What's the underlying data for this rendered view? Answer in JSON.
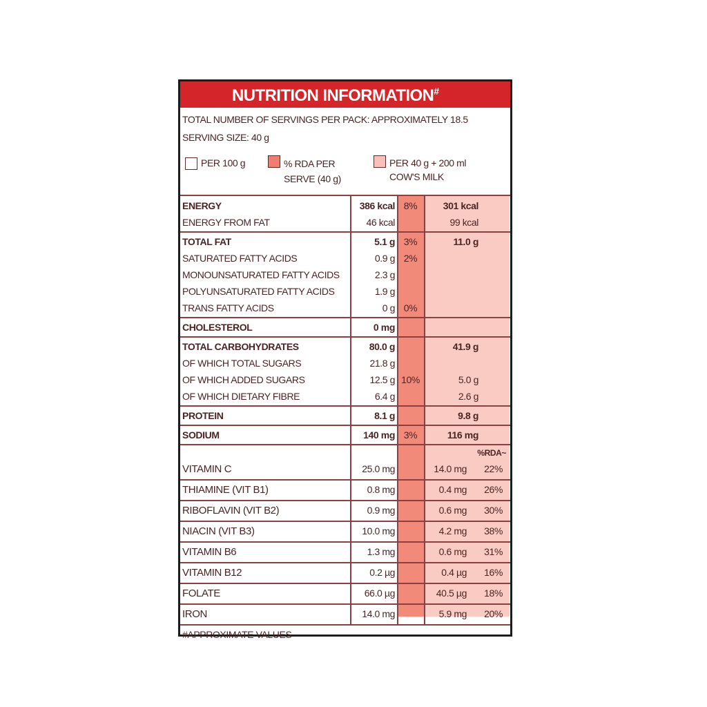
{
  "header": {
    "title": "NUTRITION INFORMATION",
    "title_mark": "#",
    "servings": "TOTAL NUMBER OF SERVINGS PER PACK: APPROXIMATELY 18.5",
    "serving_size": "SERVING SIZE: 40 g"
  },
  "legend": [
    "PER 100 g",
    "% RDA PER SERVE (40 g)",
    "PER 40 g + 200 ml COW'S MILK"
  ],
  "table": {
    "groups": [
      {
        "rows": [
          {
            "name": "ENERGY",
            "per_100g": "386 kcal",
            "rda": "8%",
            "milk": "301 kcal"
          },
          {
            "name": "ENERGY FROM FAT",
            "per_100g": "46 kcal",
            "milk": "99 kcal"
          }
        ]
      },
      {
        "rows": [
          {
            "name": "TOTAL FAT",
            "per_100g": "5.1 g",
            "rda": "3%",
            "milk": "11.0 g"
          },
          {
            "name": "SATURATED FATTY ACIDS",
            "per_100g": "0.9 g",
            "rda": "2%"
          },
          {
            "name": "MONOUNSATURATED FATTY ACIDS",
            "per_100g": "2.3 g"
          },
          {
            "name": "POLYUNSATURATED FATTY ACIDS",
            "per_100g": "1.9 g"
          },
          {
            "name": "TRANS FATTY ACIDS",
            "per_100g": "0 g",
            "rda": "0%"
          }
        ]
      },
      {
        "rows": [
          {
            "name": "CHOLESTEROL",
            "per_100g": "0 mg"
          }
        ]
      },
      {
        "rows": [
          {
            "name": "TOTAL CARBOHYDRATES",
            "per_100g": "80.0 g",
            "milk": "41.9 g"
          },
          {
            "name": "OF WHICH TOTAL SUGARS",
            "per_100g": "21.8 g"
          },
          {
            "name": "OF WHICH ADDED SUGARS",
            "per_100g": "12.5 g",
            "rda": "10%",
            "milk": "5.0 g"
          },
          {
            "name": "OF WHICH DIETARY FIBRE",
            "per_100g": "6.4 g",
            "milk": "2.6 g"
          }
        ]
      },
      {
        "rows": [
          {
            "name": "PROTEIN",
            "per_100g": "8.1 g",
            "milk": "9.8 g"
          }
        ]
      },
      {
        "rows": [
          {
            "name": "SODIUM",
            "per_100g": "140 mg",
            "rda": "3%",
            "milk": "116 mg"
          }
        ]
      }
    ],
    "vitamins_rda_header": "%RDA~",
    "vitamins": [
      {
        "name": "VITAMIN C",
        "per_100g": "25.0 mg",
        "milk": "14.0 mg",
        "milk_rda": "22%"
      },
      {
        "name": "THIAMINE (VIT B1)",
        "per_100g": "0.8 mg",
        "milk": "0.4 mg",
        "milk_rda": "26%"
      },
      {
        "name": "RIBOFLAVIN (VIT B2)",
        "per_100g": "0.9 mg",
        "milk": "0.6 mg",
        "milk_rda": "30%"
      },
      {
        "name": "NIACIN (VIT B3)",
        "per_100g": "10.0 mg",
        "milk": "4.2 mg",
        "milk_rda": "38%"
      },
      {
        "name": "VITAMIN B6",
        "per_100g": "1.3 mg",
        "milk": "0.6 mg",
        "milk_rda": "31%"
      },
      {
        "name": "VITAMIN B12",
        "per_100g": "0.2 µg",
        "milk": "0.4 µg",
        "milk_rda": "16%"
      },
      {
        "name": "FOLATE",
        "per_100g": "66.0 µg",
        "milk": "40.5 µg",
        "milk_rda": "18%"
      },
      {
        "name": "IRON",
        "per_100g": "14.0 mg",
        "milk": "5.9 mg",
        "milk_rda": "20%"
      }
    ]
  },
  "footnote": "#APPROXIMATE VALUES"
}
